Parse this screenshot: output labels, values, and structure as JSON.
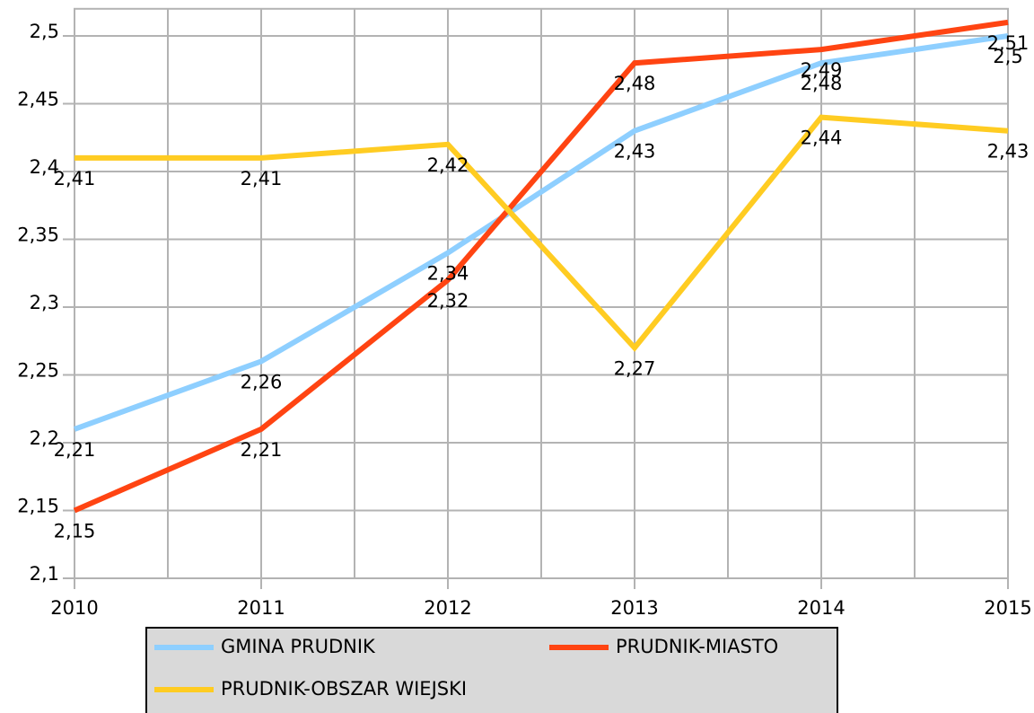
{
  "chart_data": {
    "type": "line",
    "x": [
      2010,
      2011,
      2012,
      2013,
      2014,
      2015
    ],
    "series": [
      {
        "name": "GMINA PRUDNIK",
        "color": "#8ecfff",
        "values": [
          2.21,
          2.26,
          2.34,
          2.43,
          2.48,
          2.5
        ],
        "value_labels": [
          "2,21",
          "2,26",
          "2,34",
          "2,43",
          "2,48",
          "2,5"
        ]
      },
      {
        "name": "PRUDNIK-MIASTO",
        "color": "#ff4412",
        "values": [
          2.15,
          2.21,
          2.32,
          2.48,
          2.49,
          2.51
        ],
        "value_labels": [
          "2,15",
          "2,21",
          "2,32",
          "2,48",
          "2,49",
          "2,51"
        ]
      },
      {
        "name": "PRUDNIK-OBSZAR WIEJSKI",
        "color": "#ffcc22",
        "values": [
          2.41,
          2.41,
          2.42,
          2.27,
          2.44,
          2.43
        ],
        "value_labels": [
          "2,41",
          "2,41",
          "2,42",
          "2,27",
          "2,44",
          "2,43"
        ]
      }
    ],
    "xlim": [
      2010,
      2015
    ],
    "xticks": [
      2010,
      2011,
      2012,
      2013,
      2014,
      2015
    ],
    "xgrid": [
      2010,
      2010.5,
      2011,
      2011.5,
      2012,
      2012.5,
      2013,
      2013.5,
      2014,
      2014.5,
      2015
    ],
    "ylim": [
      2.1,
      2.52
    ],
    "yticks": [
      {
        "value": 2.1,
        "label": "2,1"
      },
      {
        "value": 2.15,
        "label": "2,15"
      },
      {
        "value": 2.2,
        "label": "2,2"
      },
      {
        "value": 2.25,
        "label": "2,25"
      },
      {
        "value": 2.3,
        "label": "2,3"
      },
      {
        "value": 2.35,
        "label": "2,35"
      },
      {
        "value": 2.4,
        "label": "2,4"
      },
      {
        "value": 2.45,
        "label": "2,45"
      },
      {
        "value": 2.5,
        "label": "2,5"
      }
    ],
    "grid": true,
    "legend": "bottom"
  }
}
